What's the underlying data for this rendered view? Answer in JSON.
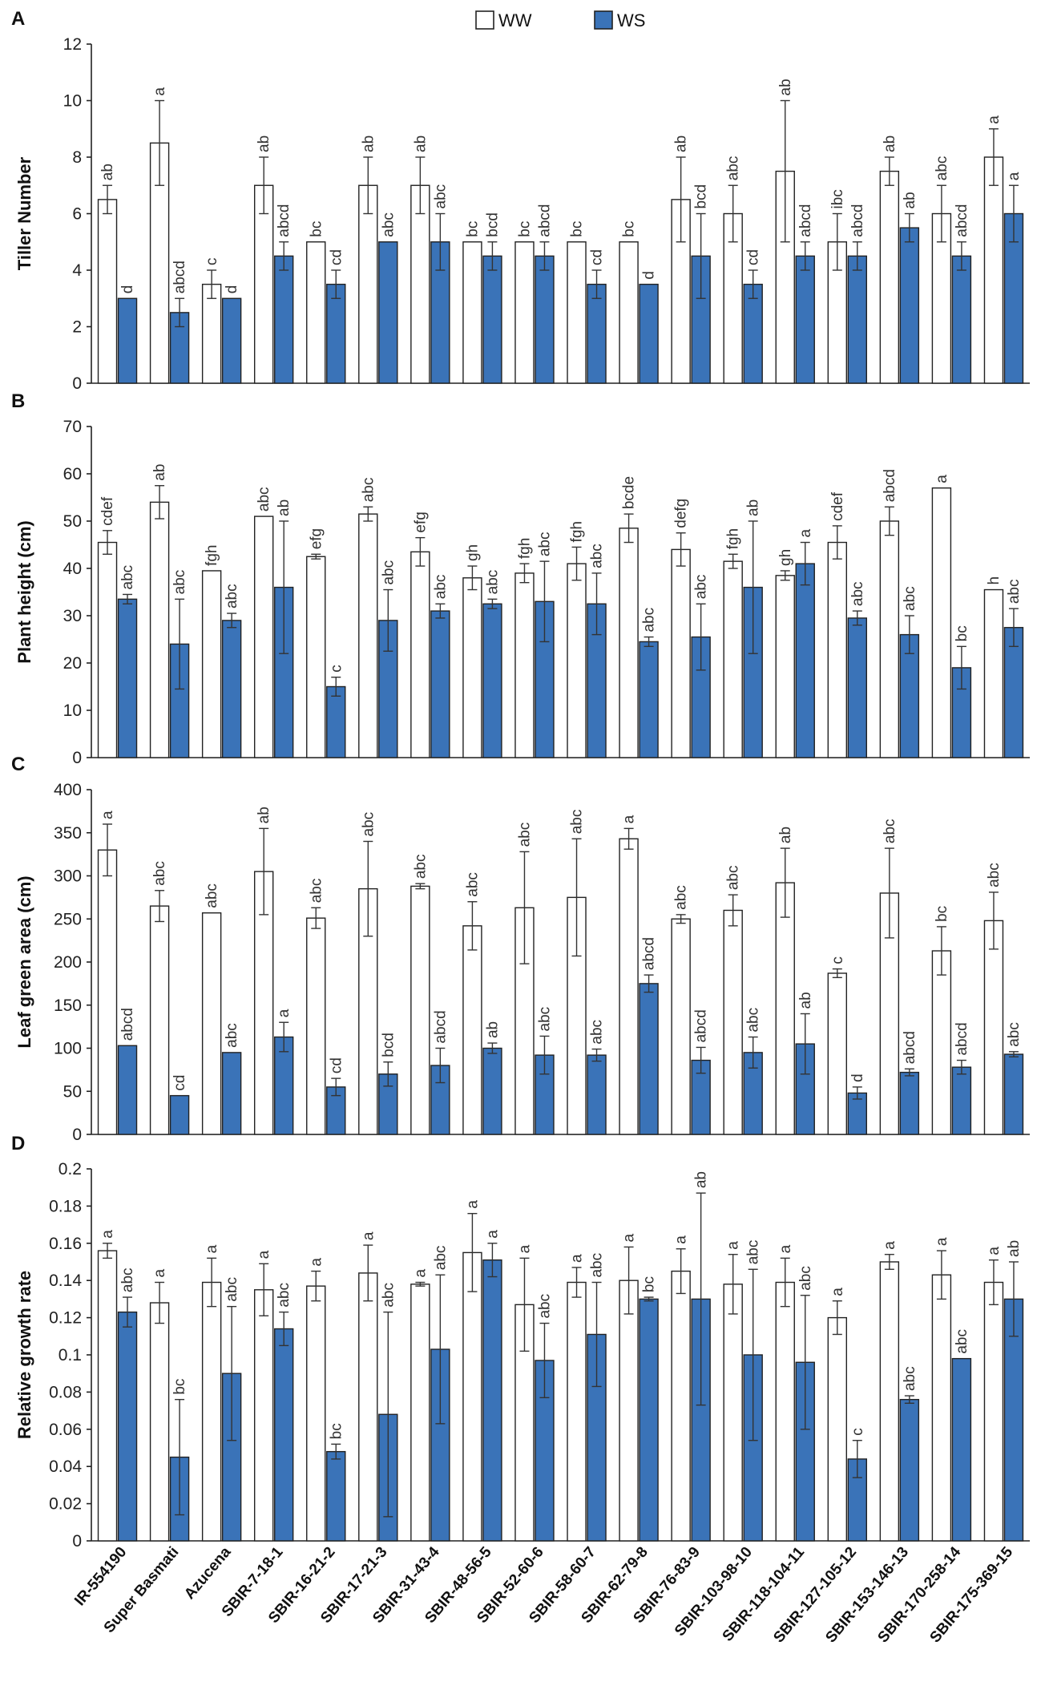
{
  "colors": {
    "ww_fill": "#ffffff",
    "ws_fill": "#3a73b8",
    "bar_stroke": "#222222",
    "axis": "#222222",
    "error": "#333333"
  },
  "legend": {
    "ww": "WW",
    "ws": "WS"
  },
  "categories": [
    "IR-554190",
    "Super Basmati",
    "Azucena",
    "SBIR-7-18-1",
    "SBIR-16-21-2",
    "SBIR-17-21-3",
    "SBIR-31-43-4",
    "SBIR-48-56-5",
    "SBIR-52-60-6",
    "SBIR-58-60-7",
    "SBIR-62-79-8",
    "SBIR-76-83-9",
    "SBIR-103-98-10",
    "SBIR-118-104-11",
    "SBIR-127-105-12",
    "SBIR-153-146-13",
    "SBIR-170-258-14",
    "SBIR-175-369-15"
  ],
  "chart_data": [
    {
      "type": "bar",
      "panel": "A",
      "ylabel": "Tiller Number",
      "ylim": [
        0,
        12
      ],
      "yticks": [
        "0",
        "2",
        "4",
        "6",
        "8",
        "10",
        "12"
      ],
      "series": [
        {
          "name": "WW",
          "values": [
            6.5,
            8.5,
            3.5,
            7,
            5,
            7,
            7,
            5,
            5,
            5,
            5,
            6.5,
            6,
            7.5,
            5,
            7.5,
            6,
            8
          ],
          "errors": [
            0.5,
            1.5,
            0.5,
            1,
            0,
            1,
            1,
            0,
            0,
            0,
            0,
            1.5,
            1,
            2.5,
            1,
            0.5,
            1,
            1
          ],
          "letters": [
            "ab",
            "a",
            "c",
            "ab",
            "bc",
            "ab",
            "ab",
            "bc",
            "bc",
            "bc",
            "bc",
            "ab",
            "abc",
            "ab",
            "ibc",
            "ab",
            "abc",
            "a"
          ]
        },
        {
          "name": "WS",
          "values": [
            3,
            2.5,
            3,
            4.5,
            3.5,
            5,
            5,
            4.5,
            4.5,
            3.5,
            3.5,
            4.5,
            3.5,
            4.5,
            4.5,
            5.5,
            4.5,
            6
          ],
          "errors": [
            0,
            0.5,
            0,
            0.5,
            0.5,
            0,
            1,
            0.5,
            0.5,
            0.5,
            0,
            1.5,
            0.5,
            0.5,
            0.5,
            0.5,
            0.5,
            1
          ],
          "letters": [
            "d",
            "abcd",
            "d",
            "abcd",
            "cd",
            "abc",
            "abc",
            "bcd",
            "abcd",
            "cd",
            "d",
            "bcd",
            "cd",
            "abcd",
            "abcd",
            "ab",
            "abcd",
            "a"
          ]
        }
      ]
    },
    {
      "type": "bar",
      "panel": "B",
      "ylabel": "Plant height (cm)",
      "ylim": [
        0,
        70
      ],
      "yticks": [
        "0",
        "10",
        "20",
        "30",
        "40",
        "50",
        "60",
        "70"
      ],
      "series": [
        {
          "name": "WW",
          "values": [
            45.5,
            54,
            39.5,
            51,
            42.5,
            51.5,
            43.5,
            38,
            39,
            41,
            48.5,
            44,
            41.5,
            38.5,
            45.5,
            50,
            57,
            35.5
          ],
          "errors": [
            2.5,
            3.5,
            0,
            0,
            0.5,
            1.5,
            3,
            2.5,
            2,
            3.5,
            3,
            3.5,
            1.5,
            1,
            3.5,
            3,
            0,
            0
          ],
          "letters": [
            "cdef",
            "ab",
            "fgh",
            "abc",
            "efg",
            "abc",
            "efg",
            "gh",
            "fgh",
            "fgh",
            "bcde",
            "defg",
            "fgh",
            "gh",
            "cdef",
            "abcd",
            "a",
            "h"
          ]
        },
        {
          "name": "WS",
          "values": [
            33.5,
            24,
            29,
            36,
            15,
            29,
            31,
            32.5,
            33,
            32.5,
            24.5,
            25.5,
            36,
            41,
            29.5,
            26,
            19,
            27.5
          ],
          "errors": [
            1,
            9.5,
            1.5,
            14,
            2,
            6.5,
            1.5,
            1,
            8.5,
            6.5,
            1,
            7,
            14,
            4.5,
            1.5,
            4,
            4.5,
            4
          ],
          "letters": [
            "abc",
            "abc",
            "abc",
            "ab",
            "c",
            "abc",
            "abc",
            "abc",
            "abc",
            "abc",
            "abc",
            "abc",
            "ab",
            "a",
            "abc",
            "abc",
            "bc",
            "abc"
          ]
        }
      ]
    },
    {
      "type": "bar",
      "panel": "C",
      "ylabel": "Leaf green area (cm)",
      "ylim": [
        0,
        400
      ],
      "yticks": [
        "0",
        "50",
        "100",
        "150",
        "200",
        "250",
        "300",
        "350",
        "400"
      ],
      "series": [
        {
          "name": "WW",
          "values": [
            330,
            265,
            257,
            305,
            251,
            285,
            288,
            242,
            263,
            275,
            343,
            250,
            260,
            292,
            187,
            280,
            213,
            248
          ],
          "errors": [
            30,
            18,
            0,
            50,
            12,
            55,
            3,
            28,
            65,
            68,
            12,
            5,
            18,
            40,
            5,
            52,
            28,
            33
          ],
          "letters": [
            "a",
            "abc",
            "abc",
            "ab",
            "abc",
            "abc",
            "abc",
            "abc",
            "abc",
            "abc",
            "a",
            "abc",
            "abc",
            "ab",
            "c",
            "abc",
            "bc",
            "abc"
          ]
        },
        {
          "name": "WS",
          "values": [
            103,
            45,
            95,
            113,
            55,
            70,
            80,
            100,
            92,
            92,
            175,
            86,
            95,
            105,
            48,
            72,
            78,
            93
          ],
          "errors": [
            0,
            0,
            0,
            17,
            10,
            14,
            20,
            6,
            22,
            7,
            10,
            15,
            18,
            35,
            7,
            4,
            8,
            3
          ],
          "letters": [
            "abcd",
            "cd",
            "abc",
            "a",
            "cd",
            "bcd",
            "abcd",
            "ab",
            "abc",
            "abc",
            "abcd",
            "abcd",
            "abc",
            "ab",
            "d",
            "abcd",
            "abcd",
            "abc"
          ]
        }
      ]
    },
    {
      "type": "bar",
      "panel": "D",
      "ylabel": "Relative growth rate",
      "ylim": [
        0,
        0.2
      ],
      "yticks": [
        "0",
        "0.02",
        "0.04",
        "0.06",
        "0.08",
        "0.1",
        "0.12",
        "0.14",
        "0.16",
        "0.18",
        "0.2"
      ],
      "series": [
        {
          "name": "WW",
          "values": [
            0.156,
            0.128,
            0.139,
            0.135,
            0.137,
            0.144,
            0.138,
            0.155,
            0.127,
            0.139,
            0.14,
            0.145,
            0.138,
            0.139,
            0.12,
            0.15,
            0.143,
            0.139
          ],
          "errors": [
            0.004,
            0.011,
            0.013,
            0.014,
            0.008,
            0.015,
            0.001,
            0.021,
            0.025,
            0.008,
            0.018,
            0.012,
            0.016,
            0.013,
            0.009,
            0.004,
            0.013,
            0.012
          ],
          "letters": [
            "a",
            "a",
            "a",
            "a",
            "a",
            "a",
            "a",
            "a",
            "a",
            "a",
            "a",
            "a",
            "a",
            "a",
            "a",
            "a",
            "a",
            "a"
          ]
        },
        {
          "name": "WS",
          "values": [
            0.123,
            0.045,
            0.09,
            0.114,
            0.048,
            0.068,
            0.103,
            0.151,
            0.097,
            0.111,
            0.13,
            0.13,
            0.1,
            0.096,
            0.044,
            0.076,
            0.098,
            0.13
          ],
          "errors": [
            0.008,
            0.031,
            0.036,
            0.009,
            0.004,
            0.055,
            0.04,
            0.009,
            0.02,
            0.028,
            0.001,
            0.057,
            0.046,
            0.036,
            0.01,
            0.002,
            0,
            0.02
          ],
          "letters": [
            "abc",
            "bc",
            "abc",
            "abc",
            "bc",
            "abc",
            "abc",
            "a",
            "abc",
            "abc",
            "bc",
            "ab",
            "abc",
            "abc",
            "c",
            "abc",
            "abc",
            "ab"
          ]
        }
      ]
    }
  ]
}
